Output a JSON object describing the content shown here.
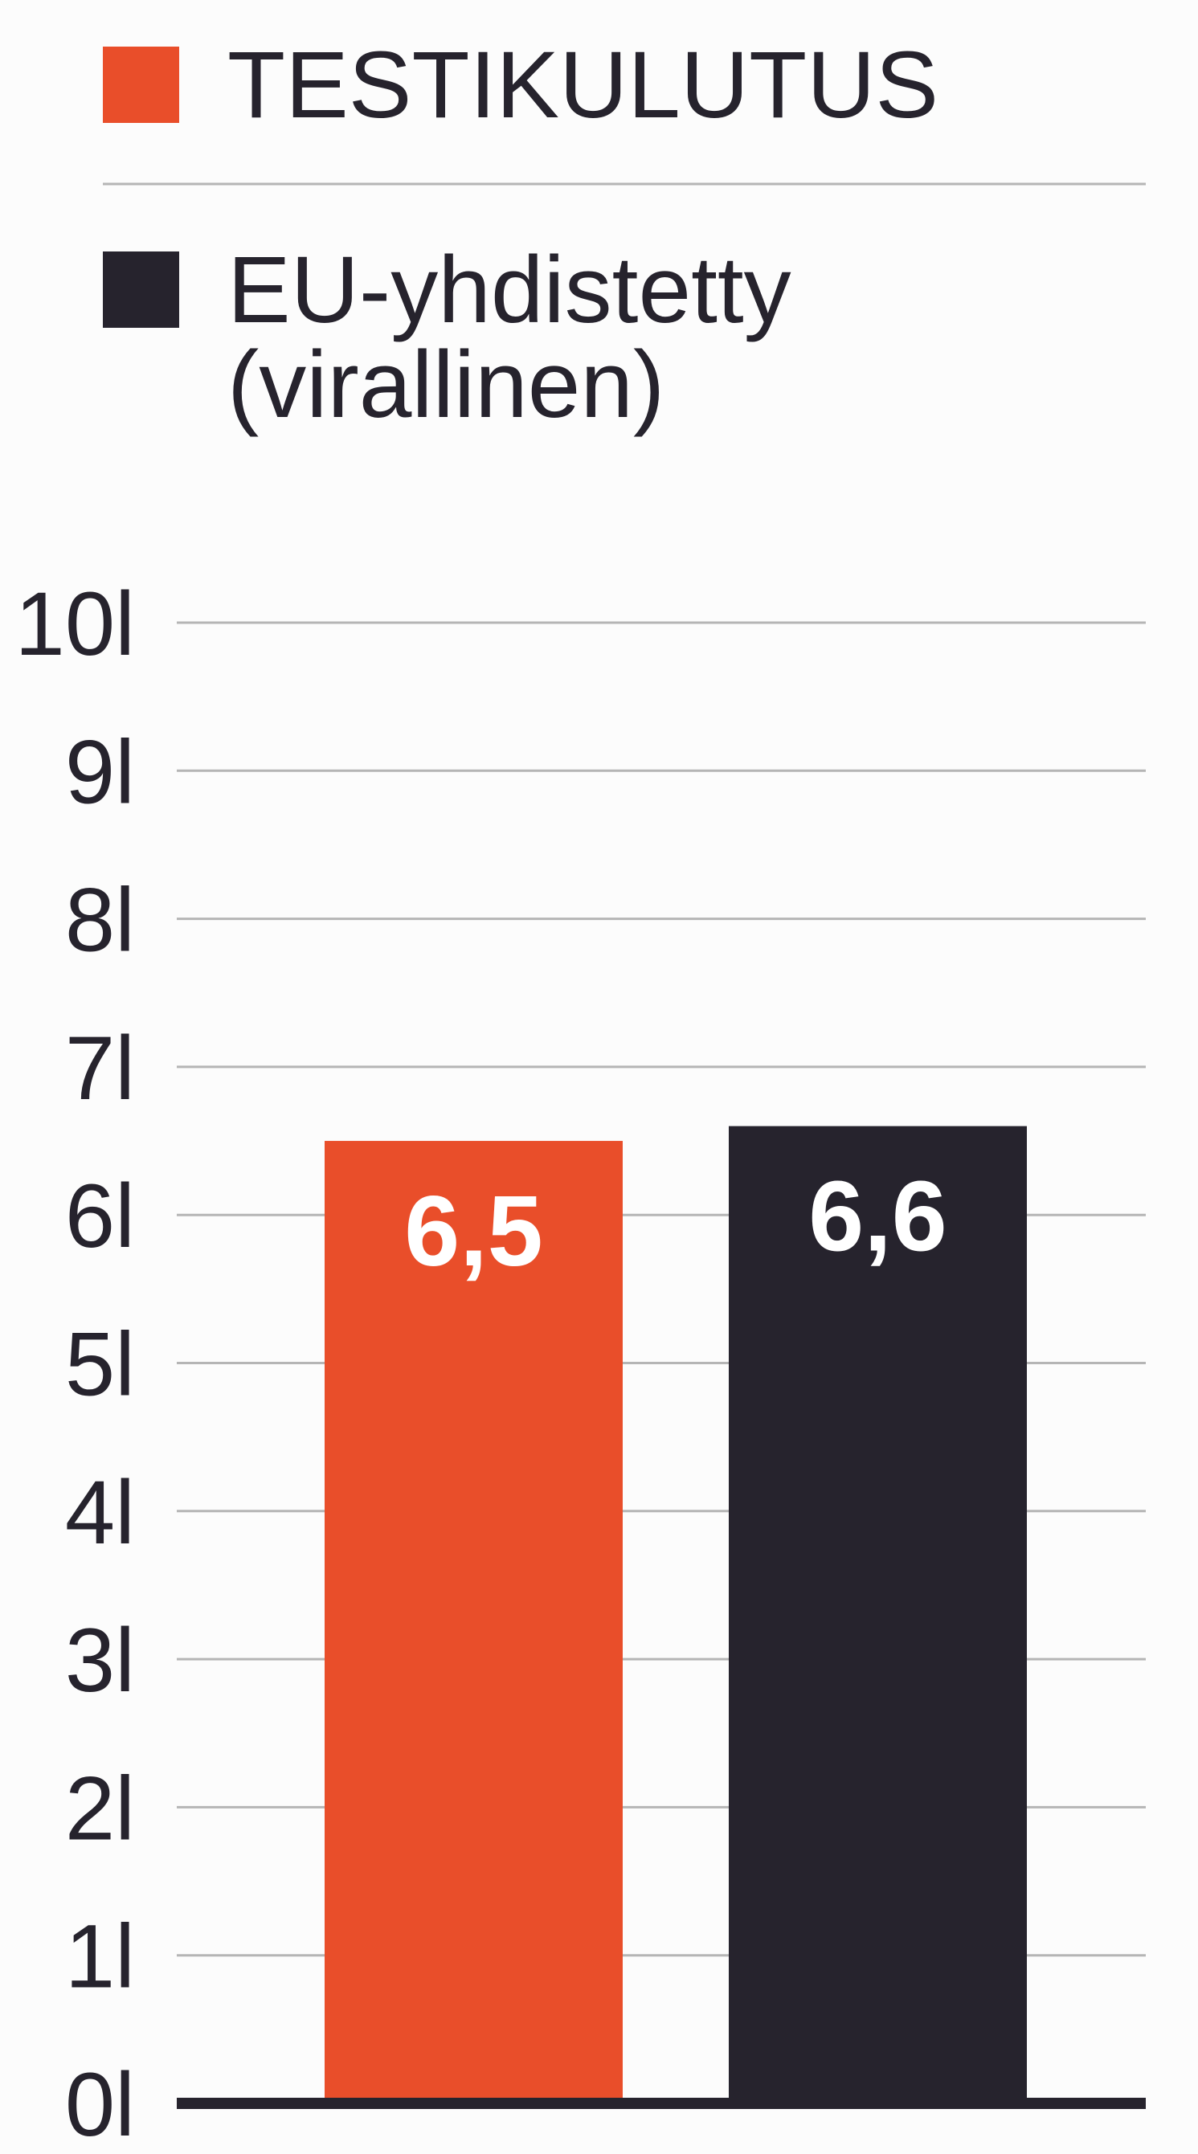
{
  "chart_data": {
    "type": "bar",
    "categories": [
      "TESTIKULUTUS",
      "EU-yhdistetty (virallinen)"
    ],
    "values": [
      6.5,
      6.6
    ],
    "value_labels": [
      "6,5",
      "6,6"
    ],
    "colors": [
      "#e94e2a",
      "#26232d"
    ],
    "ylim": [
      0,
      10
    ],
    "yticks": [
      0,
      1,
      2,
      3,
      4,
      5,
      6,
      7,
      8,
      9,
      10
    ],
    "ytick_labels": [
      "0l",
      "1l",
      "2l",
      "3l",
      "4l",
      "5l",
      "6l",
      "7l",
      "8l",
      "9l",
      "10l"
    ],
    "grid": true,
    "legend_position": "top",
    "title": "",
    "xlabel": "",
    "ylabel": ""
  },
  "legend": {
    "items": [
      {
        "label_lines": [
          "TESTIKULUTUS"
        ],
        "color": "#e94e2a"
      },
      {
        "label_lines": [
          "EU-yhdistetty",
          "(virallinen)"
        ],
        "color": "#26232d"
      }
    ]
  }
}
